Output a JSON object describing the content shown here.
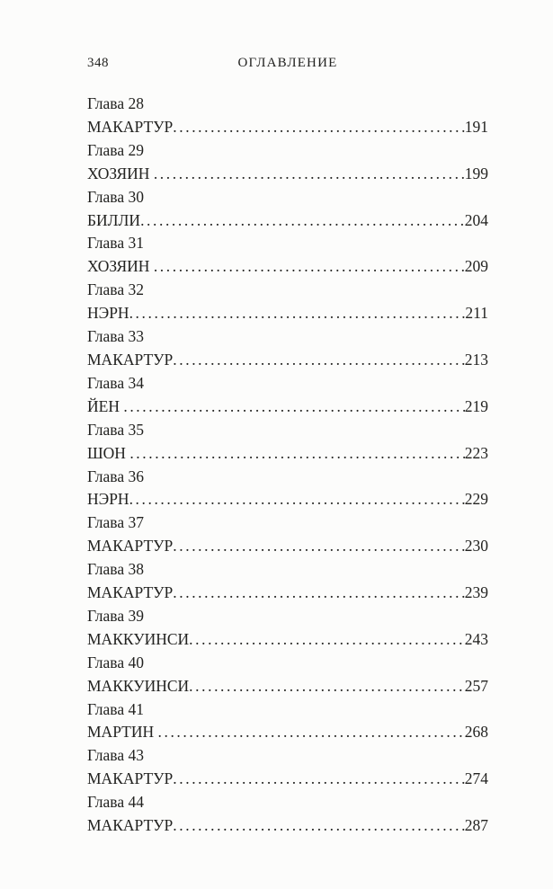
{
  "page": {
    "folio": "348",
    "header_title": "ОГЛАВЛЕНИЕ"
  },
  "toc": {
    "entries": [
      {
        "chapter": "Глава 28",
        "name": "МАКАРТУР",
        "page": "191"
      },
      {
        "chapter": "Глава 29",
        "name": "ХОЗЯИН ",
        "page": "199"
      },
      {
        "chapter": "Глава 30",
        "name": "БИЛЛИ",
        "page": "204"
      },
      {
        "chapter": "Глава 31",
        "name": "ХОЗЯИН ",
        "page": "209"
      },
      {
        "chapter": "Глава 32",
        "name": "НЭРН",
        "page": "211"
      },
      {
        "chapter": "Глава 33",
        "name": "МАКАРТУР",
        "page": "213"
      },
      {
        "chapter": "Глава 34",
        "name": "ЙЕН ",
        "page": "219"
      },
      {
        "chapter": "Глава 35",
        "name": "ШОН ",
        "page": "223"
      },
      {
        "chapter": "Глава 36",
        "name": "НЭРН",
        "page": "229"
      },
      {
        "chapter": "Глава 37",
        "name": "МАКАРТУР",
        "page": "230"
      },
      {
        "chapter": "Глава 38",
        "name": "МАКАРТУР",
        "page": "239"
      },
      {
        "chapter": "Глава 39",
        "name": "МАККУИНСИ",
        "page": "243"
      },
      {
        "chapter": "Глава 40",
        "name": "МАККУИНСИ",
        "page": "257"
      },
      {
        "chapter": "Глава 41",
        "name": "МАРТИН ",
        "page": "268"
      },
      {
        "chapter": "Глава 43",
        "name": "МАКАРТУР",
        "page": "274"
      },
      {
        "chapter": "Глава 44",
        "name": "МАКАРТУР",
        "page": "287"
      }
    ]
  }
}
